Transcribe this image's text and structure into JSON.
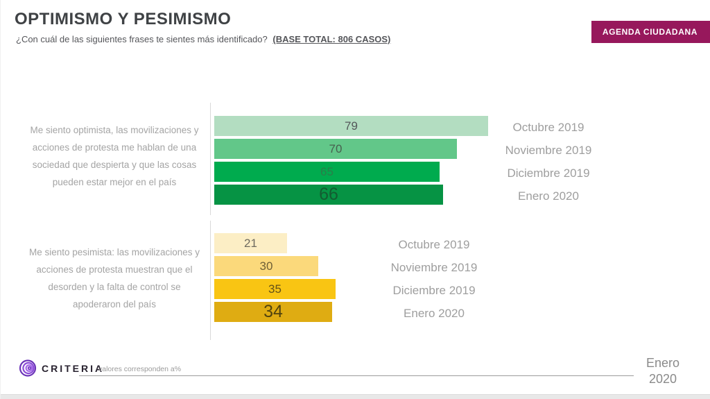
{
  "header": {
    "title": "OPTIMISMO Y PESIMISMO",
    "question": "¿Con cuál de las siguientes frases te sientes más identificado?",
    "base": "(BASE TOTAL: 806 CASOS)",
    "badge": "AGENDA CIUDADANA",
    "badge_color": "#97185C"
  },
  "chart_data": {
    "type": "bar",
    "orientation": "horizontal",
    "value_unit": "%",
    "xlim": [
      0,
      100
    ],
    "categories": [
      "Octubre 2019",
      "Noviembre 2019",
      "Diciembre 2019",
      "Enero 2020"
    ],
    "groups": [
      {
        "name": "optimista",
        "statement": "Me siento optimista, las movilizaciones y acciones de protesta me hablan de una sociedad que despierta y que las cosas pueden estar mejor en el país",
        "series": [
          {
            "label": "Octubre 2019",
            "value": 79,
            "color": "#b3ddc1",
            "label_color": "#54575a",
            "emphasis": false
          },
          {
            "label": "Noviembre 2019",
            "value": 70,
            "color": "#62c789",
            "label_color": "#47604f",
            "emphasis": false
          },
          {
            "label": "Diciembre 2019",
            "value": 65,
            "color": "#00ab4e",
            "label_color": "#2a7e49",
            "emphasis": false
          },
          {
            "label": "Enero 2020",
            "value": 66,
            "color": "#069344",
            "label_color": "#135c31",
            "emphasis": true
          }
        ]
      },
      {
        "name": "pesimista",
        "statement": "Me siento pesimista: las movilizaciones y acciones de protesta muestran que el desorden y la falta de control se apoderaron del país",
        "series": [
          {
            "label": "Octubre 2019",
            "value": 21,
            "color": "#fceec5",
            "label_color": "#6e6a5e",
            "emphasis": false
          },
          {
            "label": "Noviembre 2019",
            "value": 30,
            "color": "#fbd97b",
            "label_color": "#6f6036",
            "emphasis": false
          },
          {
            "label": "Diciembre 2019",
            "value": 35,
            "color": "#f9c513",
            "label_color": "#635117",
            "emphasis": false
          },
          {
            "label": "Enero 2020",
            "value": 34,
            "color": "#dfac12",
            "label_color": "#51430e",
            "emphasis": true
          }
        ]
      }
    ]
  },
  "footer": {
    "brand": "CRITERIA",
    "note": "valores corresponden a%",
    "date_line1": "Enero",
    "date_line2": "2020",
    "brand_accent": "#9951e0"
  }
}
